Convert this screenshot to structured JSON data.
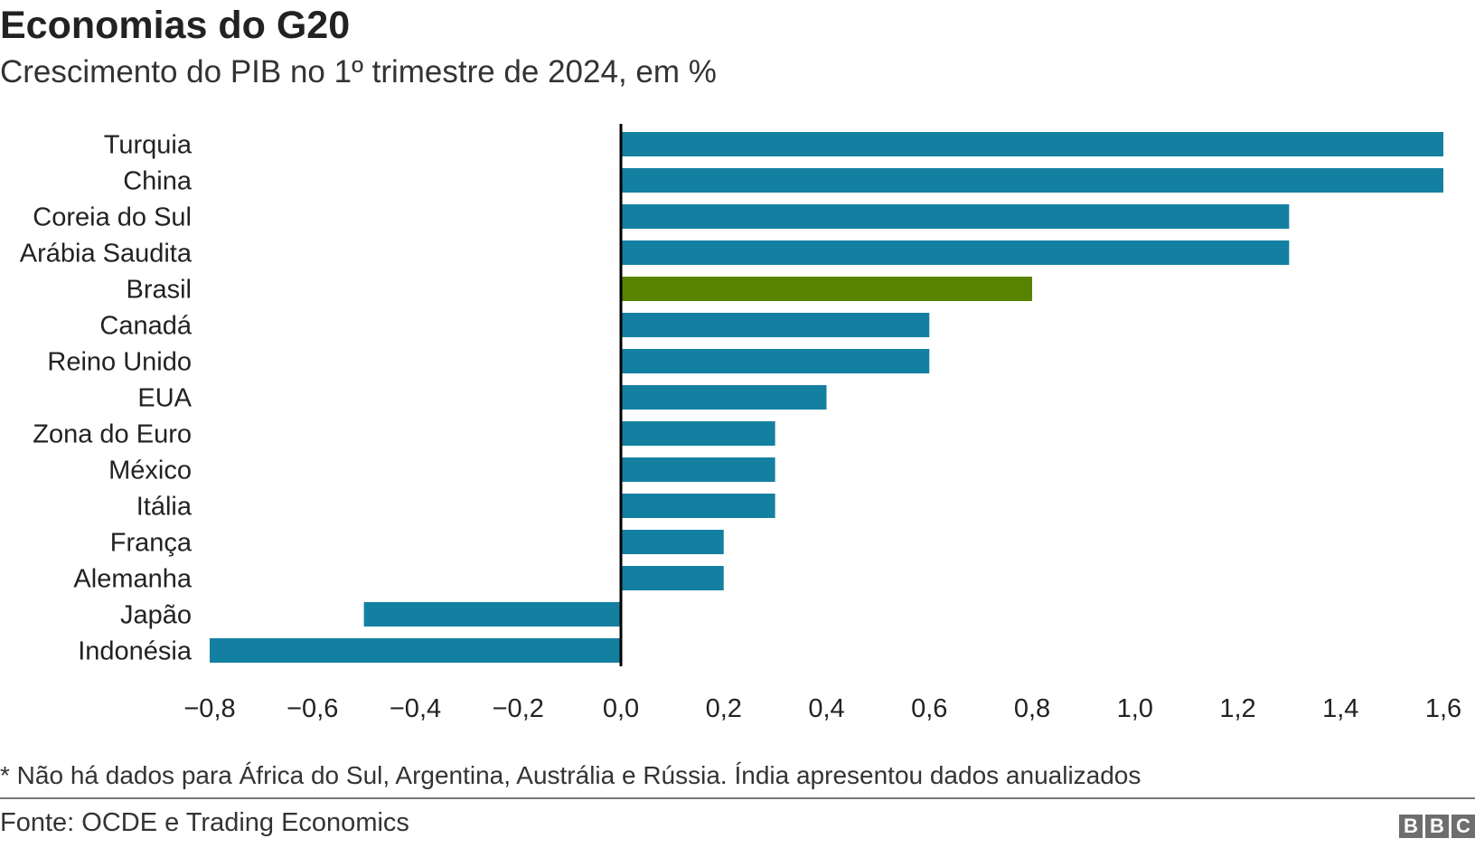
{
  "chart_data": {
    "type": "bar",
    "orientation": "horizontal",
    "title": "Economias do G20",
    "subtitle": "Crescimento do PIB no 1º trimestre de 2024, em %",
    "categories": [
      "Turquia",
      "China",
      "Coreia do Sul",
      "Arábia Saudita",
      "Brasil",
      "Canadá",
      "Reino Unido",
      "EUA",
      "Zona do Euro",
      "México",
      "Itália",
      "França",
      "Alemanha",
      "Japão",
      "Indonésia"
    ],
    "values": [
      1.6,
      1.6,
      1.3,
      1.3,
      0.8,
      0.6,
      0.6,
      0.4,
      0.3,
      0.3,
      0.3,
      0.2,
      0.2,
      -0.5,
      -0.8
    ],
    "highlight": "Brasil",
    "xlim": [
      -0.8,
      1.6
    ],
    "xticks": [
      -0.8,
      -0.6,
      -0.4,
      -0.2,
      0.0,
      0.2,
      0.4,
      0.6,
      0.8,
      1.0,
      1.2,
      1.4,
      1.6
    ],
    "xtick_labels": [
      "−0,8",
      "−0,6",
      "−0,4",
      "−0,2",
      "0,0",
      "0,2",
      "0,4",
      "0,6",
      "0,8",
      "1,0",
      "1,2",
      "1,4",
      "1,6"
    ],
    "grid": false,
    "colors": {
      "default": "#1380A1",
      "highlight": "#588300",
      "zero_line": "#000000"
    }
  },
  "footnote": "* Não há dados para África do Sul, Argentina, Austrália e Rússia. Índia apresentou dados anualizados",
  "source": "Fonte: OCDE e Trading Economics",
  "logo": [
    "B",
    "B",
    "C"
  ]
}
